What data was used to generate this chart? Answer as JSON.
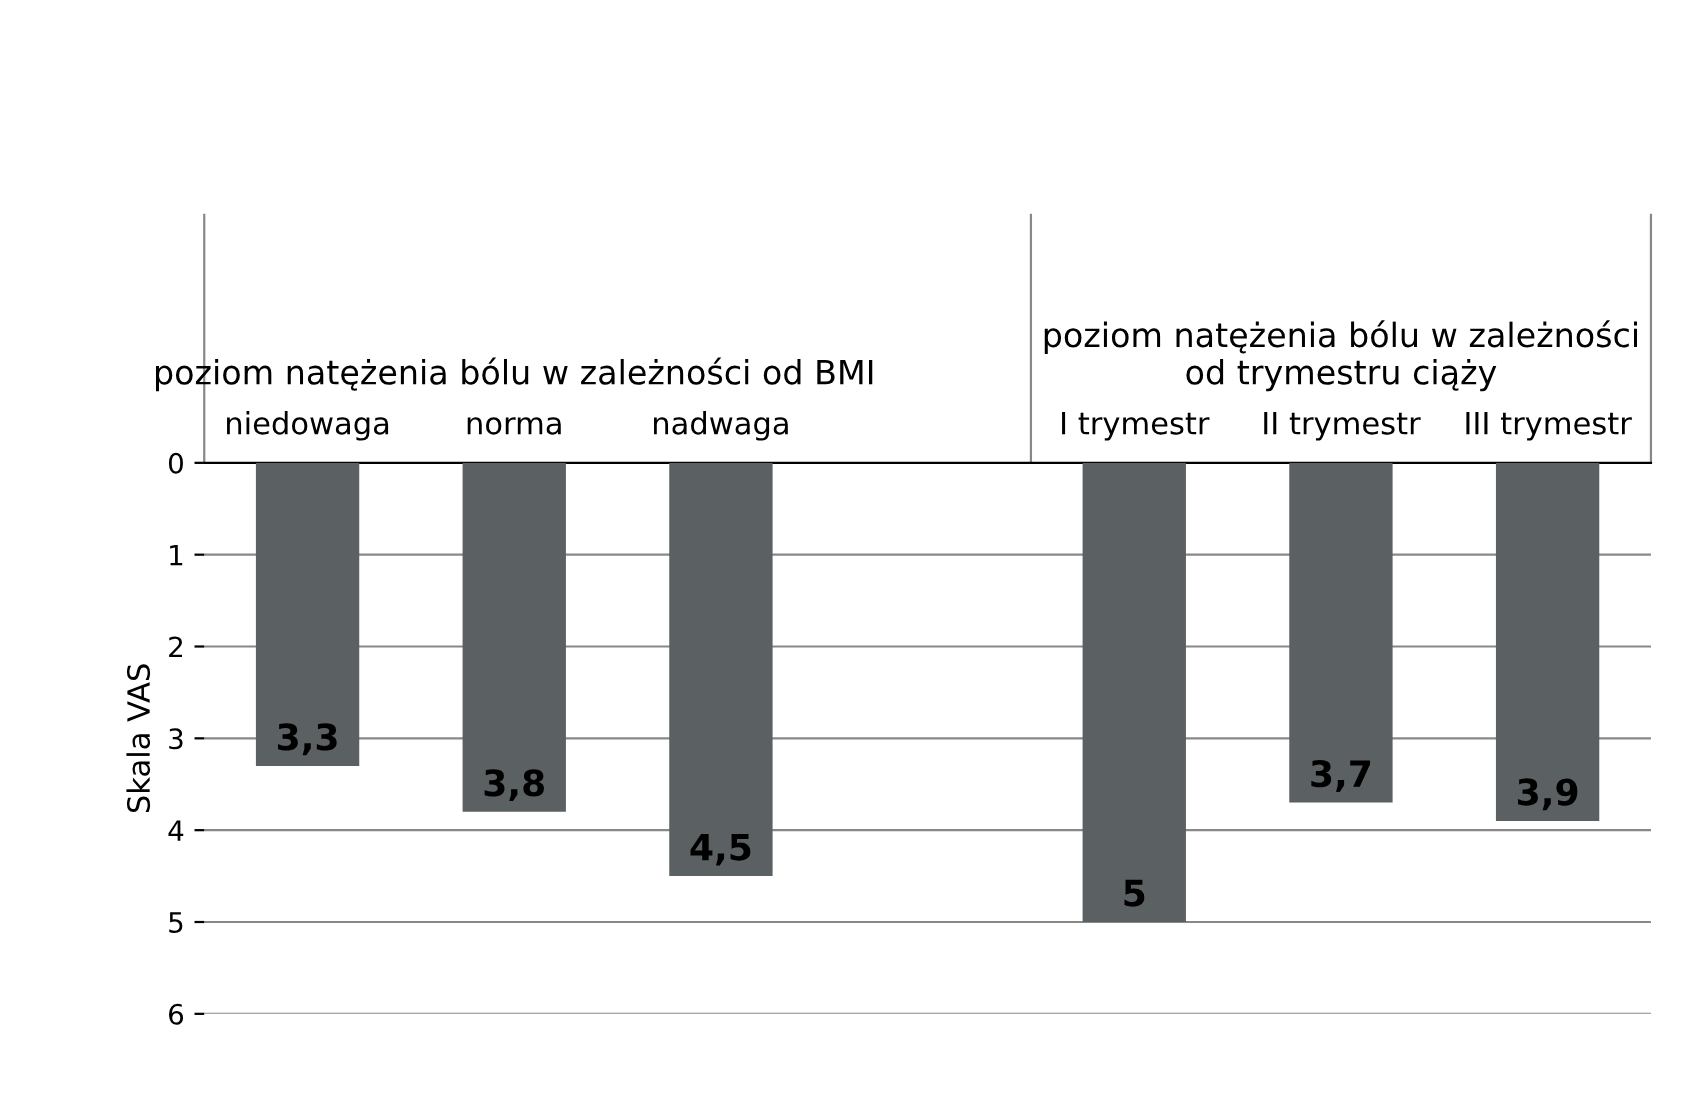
{
  "chart_data": {
    "type": "bar",
    "ylabel": "Skala VAS",
    "categories": [
      "niedowaga",
      "norma",
      "nadwaga",
      null,
      "I trymestr",
      "II trymestr",
      "III trymestr"
    ],
    "values": [
      3.3,
      3.8,
      4.5,
      null,
      5,
      3.7,
      3.9
    ],
    "value_labels": [
      "3,3",
      "3,8",
      "4,5",
      null,
      "5",
      "3,7",
      "3,9"
    ],
    "color": "#5b6062",
    "ylim": [
      6,
      0
    ],
    "yticks": [
      0,
      1,
      2,
      3,
      4,
      5,
      6
    ],
    "grid": "y",
    "annotations": [
      "poziom natężenia bólu w zależności od BMI",
      "poziom natężenia bólu w zależności\nod trymestru ciąży"
    ]
  }
}
